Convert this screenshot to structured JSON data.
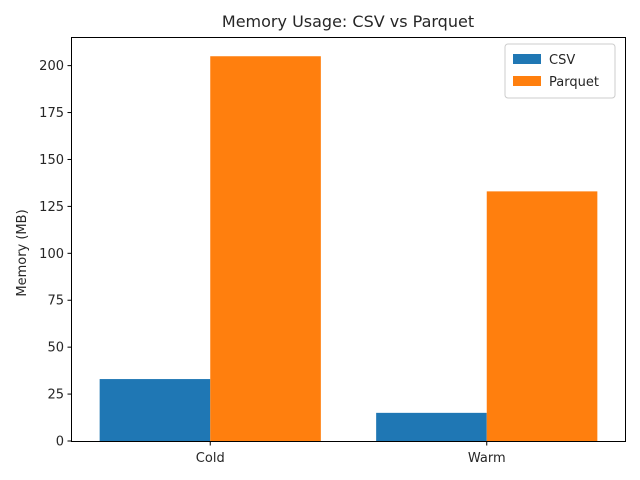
{
  "chart_data": {
    "type": "bar",
    "title": "Memory Usage: CSV vs Parquet",
    "xlabel": "",
    "ylabel": "Memory (MB)",
    "categories": [
      "Cold",
      "Warm"
    ],
    "series": [
      {
        "name": "CSV",
        "values": [
          33,
          15
        ],
        "color": "#1f77b4"
      },
      {
        "name": "Parquet",
        "values": [
          205,
          133
        ],
        "color": "#ff7f0e"
      }
    ],
    "ylim": [
      0,
      215.25
    ],
    "yticks": [
      0,
      25,
      50,
      75,
      100,
      125,
      150,
      175,
      200
    ],
    "grid": false,
    "legend_position": "top-right"
  }
}
